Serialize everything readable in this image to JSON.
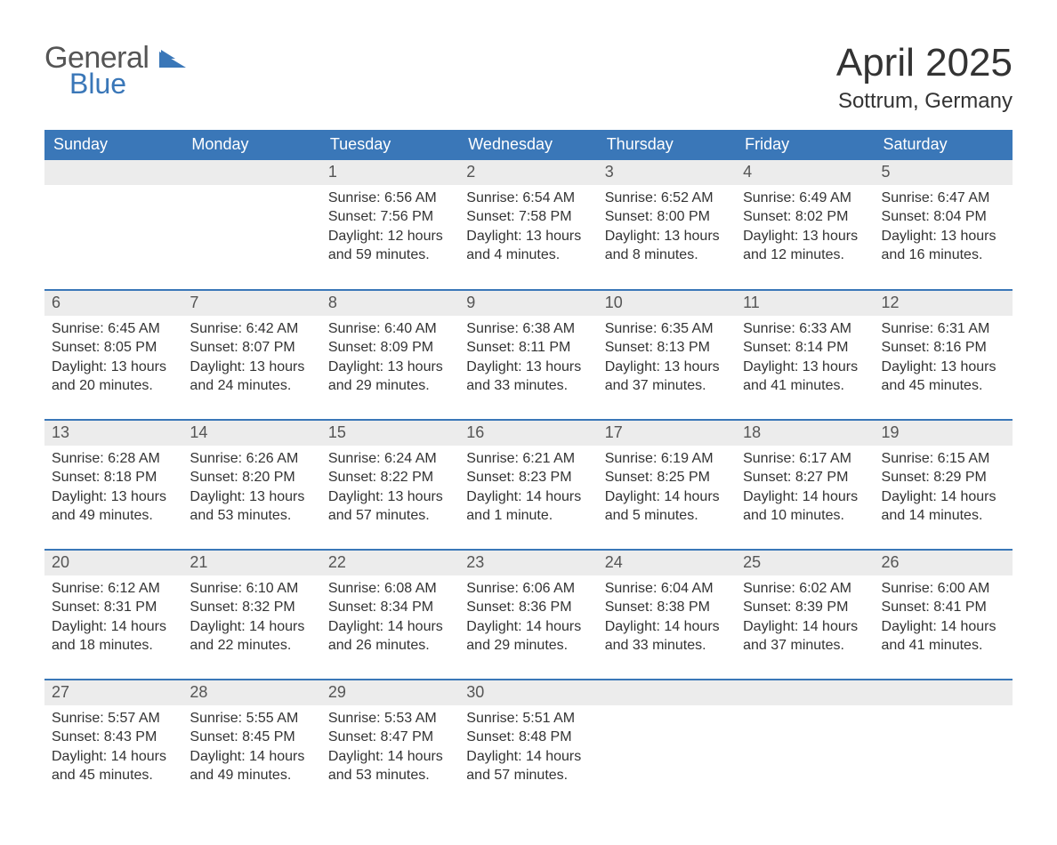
{
  "logo": {
    "text1": "General",
    "text2": "Blue",
    "accent_color": "#3a77b8"
  },
  "title": "April 2025",
  "location": "Sottrum, Germany",
  "colors": {
    "header_bg": "#3a77b8",
    "header_text": "#ffffff",
    "daynum_bg": "#ececec",
    "body_text": "#333333",
    "page_bg": "#ffffff"
  },
  "typography": {
    "title_fontsize_pt": 33,
    "location_fontsize_pt": 18,
    "header_fontsize_pt": 14,
    "daynum_fontsize_pt": 14,
    "body_fontsize_pt": 12
  },
  "day_labels": [
    "Sunday",
    "Monday",
    "Tuesday",
    "Wednesday",
    "Thursday",
    "Friday",
    "Saturday"
  ],
  "weeks": [
    [
      null,
      null,
      {
        "n": "1",
        "sunrise": "Sunrise: 6:56 AM",
        "sunset": "Sunset: 7:56 PM",
        "dl1": "Daylight: 12 hours",
        "dl2": "and 59 minutes."
      },
      {
        "n": "2",
        "sunrise": "Sunrise: 6:54 AM",
        "sunset": "Sunset: 7:58 PM",
        "dl1": "Daylight: 13 hours",
        "dl2": "and 4 minutes."
      },
      {
        "n": "3",
        "sunrise": "Sunrise: 6:52 AM",
        "sunset": "Sunset: 8:00 PM",
        "dl1": "Daylight: 13 hours",
        "dl2": "and 8 minutes."
      },
      {
        "n": "4",
        "sunrise": "Sunrise: 6:49 AM",
        "sunset": "Sunset: 8:02 PM",
        "dl1": "Daylight: 13 hours",
        "dl2": "and 12 minutes."
      },
      {
        "n": "5",
        "sunrise": "Sunrise: 6:47 AM",
        "sunset": "Sunset: 8:04 PM",
        "dl1": "Daylight: 13 hours",
        "dl2": "and 16 minutes."
      }
    ],
    [
      {
        "n": "6",
        "sunrise": "Sunrise: 6:45 AM",
        "sunset": "Sunset: 8:05 PM",
        "dl1": "Daylight: 13 hours",
        "dl2": "and 20 minutes."
      },
      {
        "n": "7",
        "sunrise": "Sunrise: 6:42 AM",
        "sunset": "Sunset: 8:07 PM",
        "dl1": "Daylight: 13 hours",
        "dl2": "and 24 minutes."
      },
      {
        "n": "8",
        "sunrise": "Sunrise: 6:40 AM",
        "sunset": "Sunset: 8:09 PM",
        "dl1": "Daylight: 13 hours",
        "dl2": "and 29 minutes."
      },
      {
        "n": "9",
        "sunrise": "Sunrise: 6:38 AM",
        "sunset": "Sunset: 8:11 PM",
        "dl1": "Daylight: 13 hours",
        "dl2": "and 33 minutes."
      },
      {
        "n": "10",
        "sunrise": "Sunrise: 6:35 AM",
        "sunset": "Sunset: 8:13 PM",
        "dl1": "Daylight: 13 hours",
        "dl2": "and 37 minutes."
      },
      {
        "n": "11",
        "sunrise": "Sunrise: 6:33 AM",
        "sunset": "Sunset: 8:14 PM",
        "dl1": "Daylight: 13 hours",
        "dl2": "and 41 minutes."
      },
      {
        "n": "12",
        "sunrise": "Sunrise: 6:31 AM",
        "sunset": "Sunset: 8:16 PM",
        "dl1": "Daylight: 13 hours",
        "dl2": "and 45 minutes."
      }
    ],
    [
      {
        "n": "13",
        "sunrise": "Sunrise: 6:28 AM",
        "sunset": "Sunset: 8:18 PM",
        "dl1": "Daylight: 13 hours",
        "dl2": "and 49 minutes."
      },
      {
        "n": "14",
        "sunrise": "Sunrise: 6:26 AM",
        "sunset": "Sunset: 8:20 PM",
        "dl1": "Daylight: 13 hours",
        "dl2": "and 53 minutes."
      },
      {
        "n": "15",
        "sunrise": "Sunrise: 6:24 AM",
        "sunset": "Sunset: 8:22 PM",
        "dl1": "Daylight: 13 hours",
        "dl2": "and 57 minutes."
      },
      {
        "n": "16",
        "sunrise": "Sunrise: 6:21 AM",
        "sunset": "Sunset: 8:23 PM",
        "dl1": "Daylight: 14 hours",
        "dl2": "and 1 minute."
      },
      {
        "n": "17",
        "sunrise": "Sunrise: 6:19 AM",
        "sunset": "Sunset: 8:25 PM",
        "dl1": "Daylight: 14 hours",
        "dl2": "and 5 minutes."
      },
      {
        "n": "18",
        "sunrise": "Sunrise: 6:17 AM",
        "sunset": "Sunset: 8:27 PM",
        "dl1": "Daylight: 14 hours",
        "dl2": "and 10 minutes."
      },
      {
        "n": "19",
        "sunrise": "Sunrise: 6:15 AM",
        "sunset": "Sunset: 8:29 PM",
        "dl1": "Daylight: 14 hours",
        "dl2": "and 14 minutes."
      }
    ],
    [
      {
        "n": "20",
        "sunrise": "Sunrise: 6:12 AM",
        "sunset": "Sunset: 8:31 PM",
        "dl1": "Daylight: 14 hours",
        "dl2": "and 18 minutes."
      },
      {
        "n": "21",
        "sunrise": "Sunrise: 6:10 AM",
        "sunset": "Sunset: 8:32 PM",
        "dl1": "Daylight: 14 hours",
        "dl2": "and 22 minutes."
      },
      {
        "n": "22",
        "sunrise": "Sunrise: 6:08 AM",
        "sunset": "Sunset: 8:34 PM",
        "dl1": "Daylight: 14 hours",
        "dl2": "and 26 minutes."
      },
      {
        "n": "23",
        "sunrise": "Sunrise: 6:06 AM",
        "sunset": "Sunset: 8:36 PM",
        "dl1": "Daylight: 14 hours",
        "dl2": "and 29 minutes."
      },
      {
        "n": "24",
        "sunrise": "Sunrise: 6:04 AM",
        "sunset": "Sunset: 8:38 PM",
        "dl1": "Daylight: 14 hours",
        "dl2": "and 33 minutes."
      },
      {
        "n": "25",
        "sunrise": "Sunrise: 6:02 AM",
        "sunset": "Sunset: 8:39 PM",
        "dl1": "Daylight: 14 hours",
        "dl2": "and 37 minutes."
      },
      {
        "n": "26",
        "sunrise": "Sunrise: 6:00 AM",
        "sunset": "Sunset: 8:41 PM",
        "dl1": "Daylight: 14 hours",
        "dl2": "and 41 minutes."
      }
    ],
    [
      {
        "n": "27",
        "sunrise": "Sunrise: 5:57 AM",
        "sunset": "Sunset: 8:43 PM",
        "dl1": "Daylight: 14 hours",
        "dl2": "and 45 minutes."
      },
      {
        "n": "28",
        "sunrise": "Sunrise: 5:55 AM",
        "sunset": "Sunset: 8:45 PM",
        "dl1": "Daylight: 14 hours",
        "dl2": "and 49 minutes."
      },
      {
        "n": "29",
        "sunrise": "Sunrise: 5:53 AM",
        "sunset": "Sunset: 8:47 PM",
        "dl1": "Daylight: 14 hours",
        "dl2": "and 53 minutes."
      },
      {
        "n": "30",
        "sunrise": "Sunrise: 5:51 AM",
        "sunset": "Sunset: 8:48 PM",
        "dl1": "Daylight: 14 hours",
        "dl2": "and 57 minutes."
      },
      null,
      null,
      null
    ]
  ]
}
